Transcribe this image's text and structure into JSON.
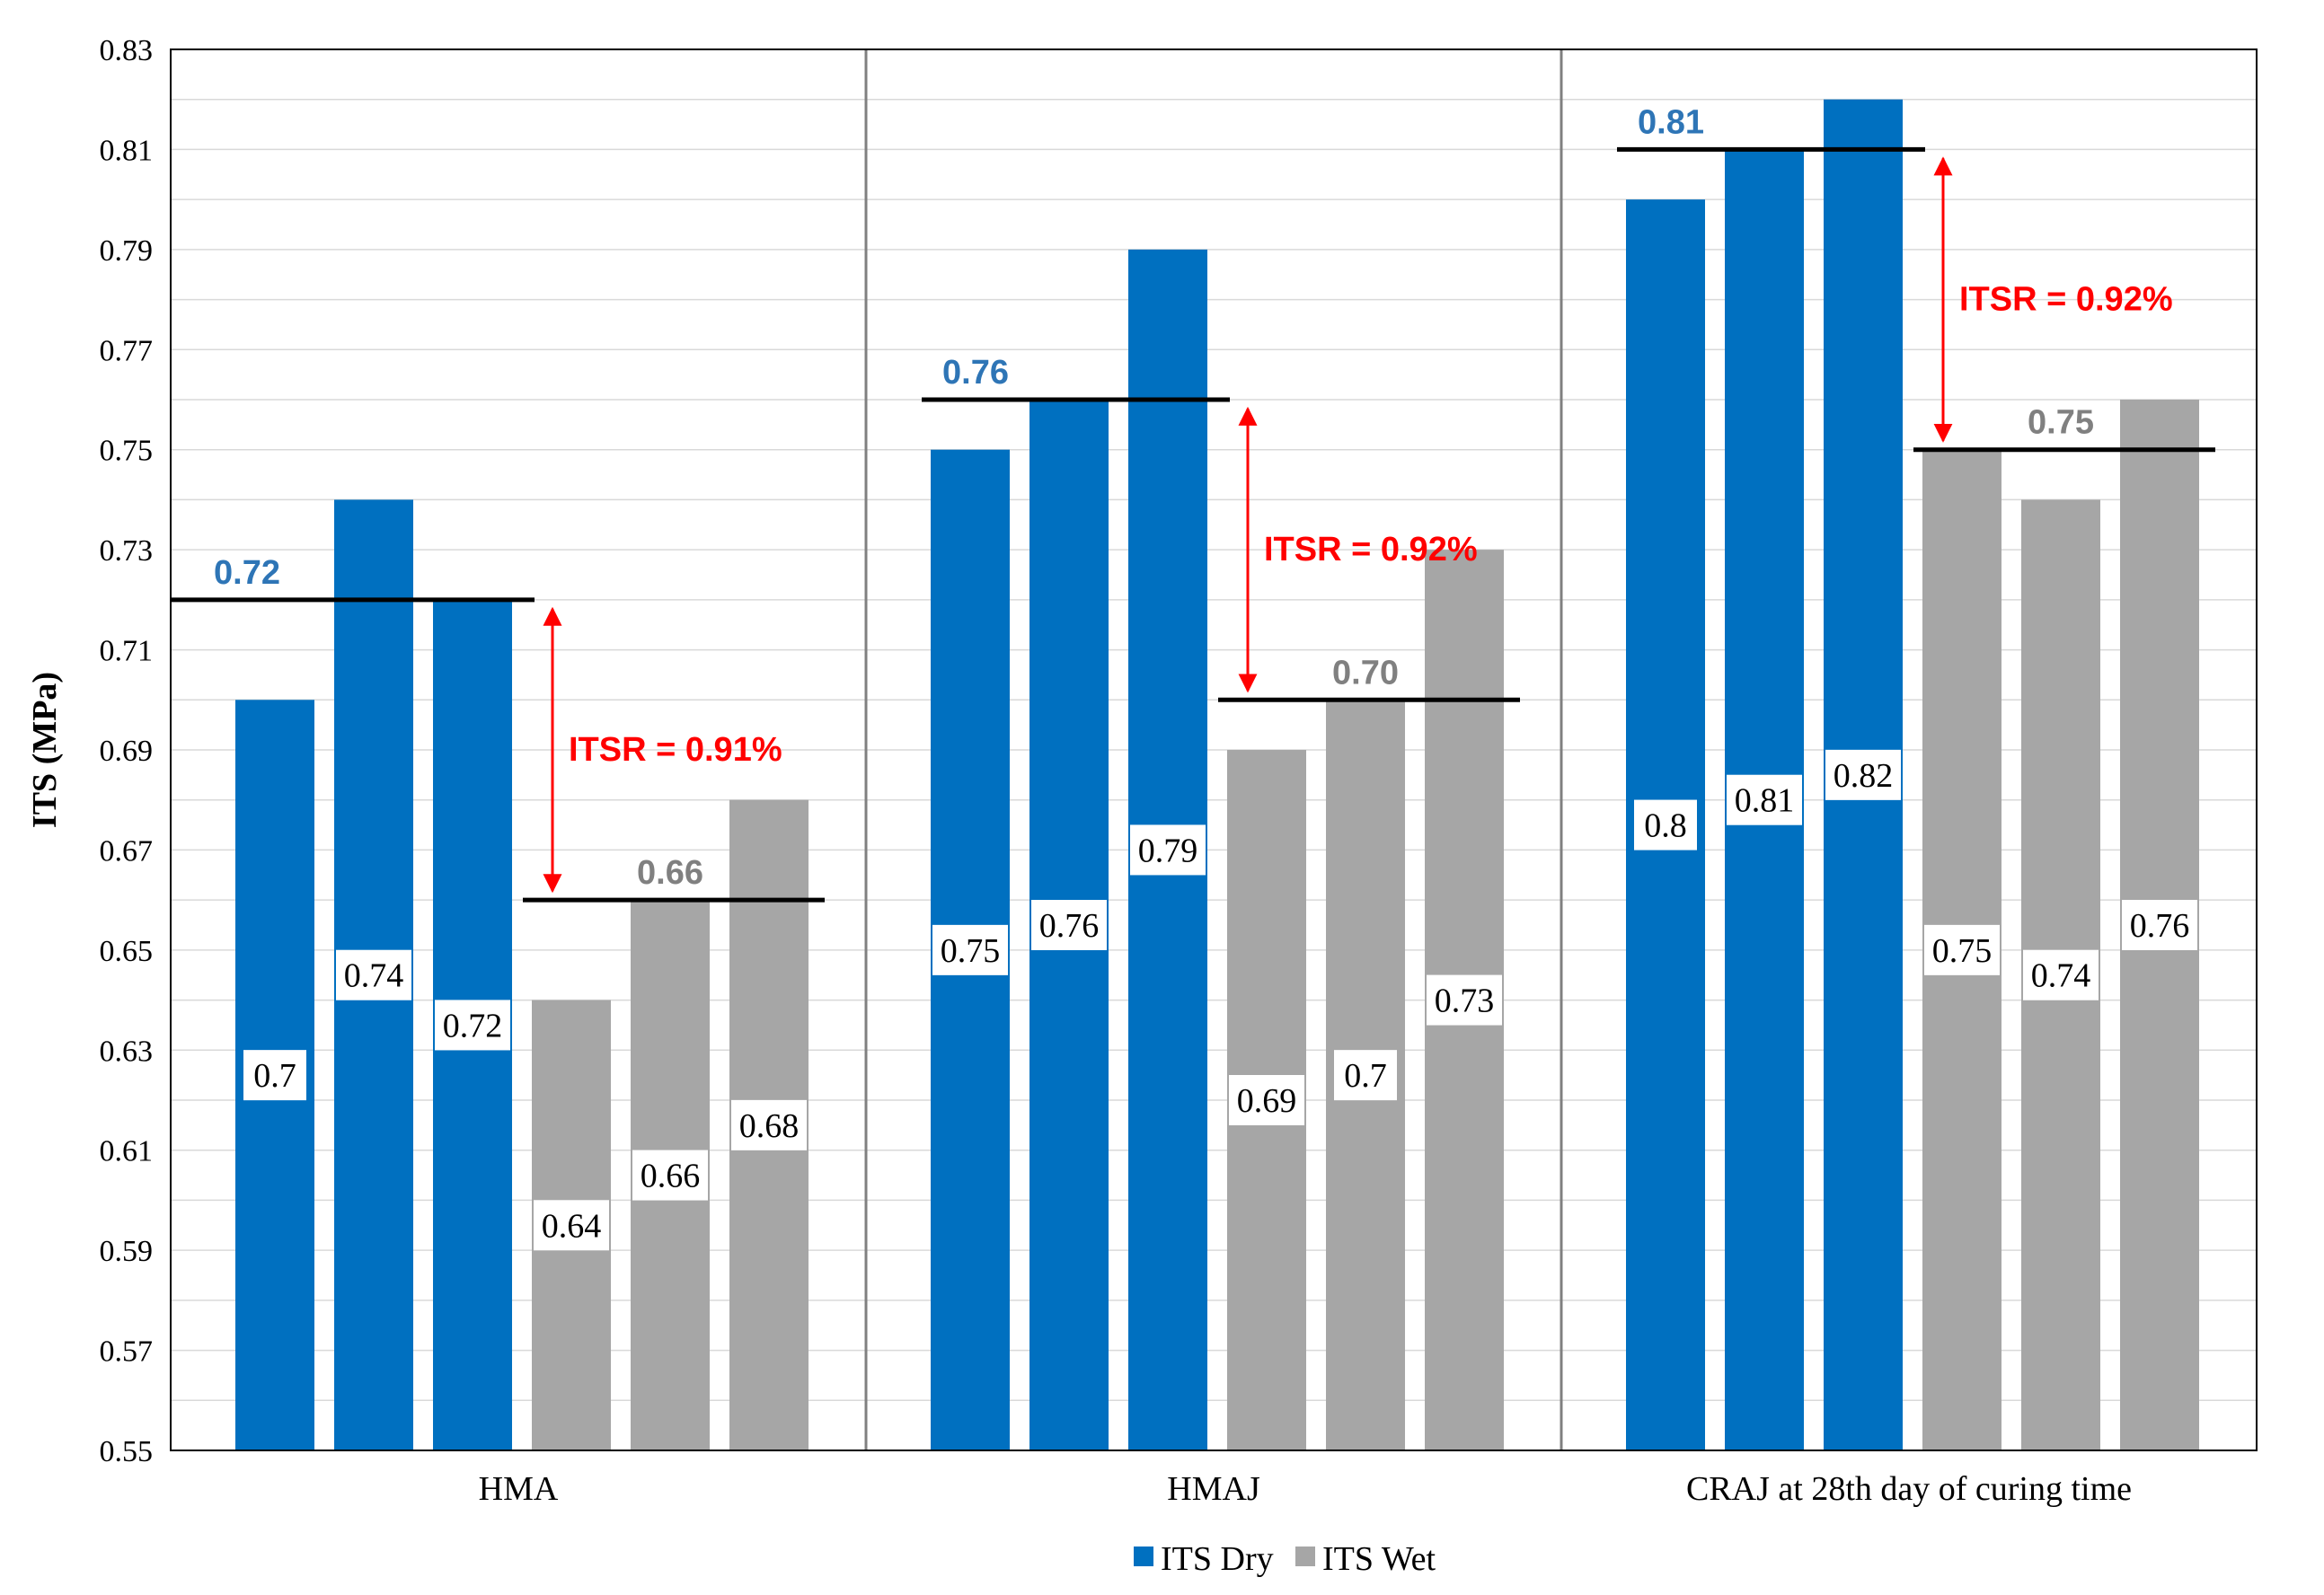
{
  "chart_data": {
    "type": "bar",
    "title": "",
    "xlabel": "",
    "ylabel": "ITS (MPa)",
    "ylim": [
      0.55,
      0.83
    ],
    "yticks": [
      "0.55",
      "0.57",
      "0.59",
      "0.61",
      "0.63",
      "0.65",
      "0.67",
      "0.69",
      "0.71",
      "0.73",
      "0.75",
      "0.77",
      "0.79",
      "0.81",
      "0.83"
    ],
    "grid": true,
    "legend_position": "bottom",
    "series": [
      {
        "name": "ITS Dry",
        "color": "#0070c0"
      },
      {
        "name": "ITS Wet",
        "color": "#a6a6a6"
      }
    ],
    "groups": [
      {
        "category": "HMA",
        "dry": [
          0.7,
          0.74,
          0.72
        ],
        "dry_labels": [
          "0.7",
          "0.74",
          "0.72"
        ],
        "wet": [
          0.64,
          0.66,
          0.68
        ],
        "wet_labels": [
          "0.64",
          "0.66",
          "0.68"
        ],
        "dry_avg": 0.72,
        "dry_avg_label": "0.72",
        "wet_avg": 0.66,
        "wet_avg_label": "0.66",
        "itsr_label": "ITSR = 0.91%"
      },
      {
        "category": "HMAJ",
        "dry": [
          0.75,
          0.76,
          0.79
        ],
        "dry_labels": [
          "0.75",
          "0.76",
          "0.79"
        ],
        "wet": [
          0.69,
          0.7,
          0.73
        ],
        "wet_labels": [
          "0.69",
          "0.7",
          "0.73"
        ],
        "dry_avg": 0.76,
        "dry_avg_label": "0.76",
        "wet_avg": 0.7,
        "wet_avg_label": "0.70",
        "itsr_label": "ITSR = 0.92%"
      },
      {
        "category": "CRAJ at 28th day of curing time",
        "dry": [
          0.8,
          0.81,
          0.82
        ],
        "dry_labels": [
          "0.8",
          "0.81",
          "0.82"
        ],
        "wet": [
          0.75,
          0.74,
          0.76
        ],
        "wet_labels": [
          "0.75",
          "0.74",
          "0.76"
        ],
        "dry_avg": 0.81,
        "dry_avg_label": "0.81",
        "wet_avg": 0.75,
        "wet_avg_label": "0.75",
        "itsr_label": "ITSR = 0.92%"
      }
    ],
    "colors": {
      "dry": "#0070c0",
      "wet": "#a6a6a6",
      "dry_avg_text": "#2e75b6",
      "wet_avg_text": "#808080",
      "itsr": "#ff0000",
      "grid": "#d9d9d9",
      "separator": "#808080"
    }
  }
}
